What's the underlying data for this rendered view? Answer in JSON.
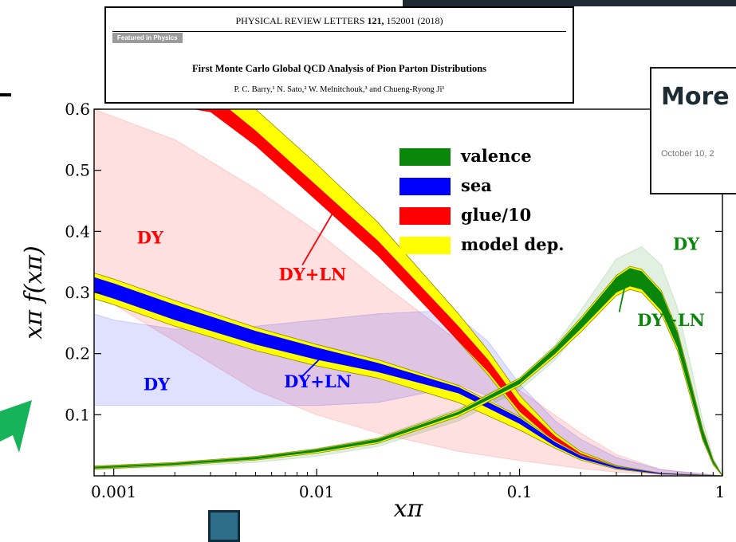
{
  "header": {
    "journal": "PHYSICAL REVIEW LETTERS ",
    "volume": "121,",
    "citation": " 152001 (2018)",
    "badge": "Featured in Physics",
    "title": "First Monte Carlo Global QCD Analysis of Pion Parton Distributions",
    "authors": "P. C. Barry,¹ N. Sato,² W. Melnitchouk,³ and Chueng-Ryong Ji¹"
  },
  "card": {
    "title": "More",
    "date": "October 10, 2"
  },
  "chart_data": {
    "type": "area",
    "xscale": "log",
    "xlim": [
      0.0008,
      1
    ],
    "ylim": [
      0,
      0.6
    ],
    "xlabel": "xπ",
    "ylabel": "xπ f(xπ)",
    "xticks": [
      {
        "value": 0.001,
        "label": "0.001"
      },
      {
        "value": 0.01,
        "label": "0.01"
      },
      {
        "value": 0.1,
        "label": "0.1"
      },
      {
        "value": 1,
        "label": "1"
      }
    ],
    "yticks": [
      {
        "value": 0.1,
        "label": "0.1"
      },
      {
        "value": 0.2,
        "label": "0.2"
      },
      {
        "value": 0.3,
        "label": "0.3"
      },
      {
        "value": 0.4,
        "label": "0.4"
      },
      {
        "value": 0.5,
        "label": "0.5"
      },
      {
        "value": 0.6,
        "label": "0.6"
      }
    ],
    "legend": {
      "placement": "top-right",
      "entries": [
        {
          "label": "valence",
          "color": "#0a870a"
        },
        {
          "label": "sea",
          "color": "#0000ff"
        },
        {
          "label": "glue/10",
          "color": "#ff0000"
        },
        {
          "label": "model dep.",
          "color": "#ffff00"
        }
      ]
    },
    "series": [
      {
        "name": "DY",
        "kind": "valence",
        "fit": "DY",
        "x": [
          0.0008,
          0.002,
          0.005,
          0.01,
          0.02,
          0.05,
          0.1,
          0.15,
          0.2,
          0.3,
          0.4,
          0.5,
          0.6,
          0.7,
          0.8,
          0.9,
          1.0
        ],
        "lower": [
          0.01,
          0.015,
          0.022,
          0.032,
          0.048,
          0.09,
          0.14,
          0.19,
          0.24,
          0.31,
          0.32,
          0.29,
          0.22,
          0.14,
          0.07,
          0.02,
          0.0
        ],
        "upper": [
          0.016,
          0.022,
          0.032,
          0.045,
          0.063,
          0.11,
          0.16,
          0.215,
          0.27,
          0.355,
          0.375,
          0.345,
          0.275,
          0.18,
          0.09,
          0.03,
          0.0
        ]
      },
      {
        "name": "DY",
        "kind": "sea",
        "fit": "DY",
        "x": [
          0.0008,
          0.001,
          0.002,
          0.005,
          0.01,
          0.02,
          0.04,
          0.05,
          0.07,
          0.1,
          0.15,
          0.2,
          0.3,
          0.5,
          1.0
        ],
        "lower": [
          0.115,
          0.115,
          0.115,
          0.115,
          0.115,
          0.12,
          0.14,
          0.15,
          0.13,
          0.09,
          0.055,
          0.035,
          0.015,
          0.005,
          0.0
        ],
        "upper": [
          0.265,
          0.255,
          0.24,
          0.245,
          0.255,
          0.265,
          0.27,
          0.26,
          0.22,
          0.15,
          0.09,
          0.06,
          0.03,
          0.01,
          0.0
        ]
      },
      {
        "name": "DY",
        "kind": "glue/10",
        "fit": "DY",
        "x": [
          0.0008,
          0.002,
          0.005,
          0.01,
          0.02,
          0.05,
          0.1,
          0.2,
          0.3,
          0.5,
          1.0
        ],
        "lower": [
          0.3,
          0.22,
          0.14,
          0.1,
          0.07,
          0.04,
          0.025,
          0.012,
          0.006,
          0.002,
          0.0
        ],
        "upper": [
          0.6,
          0.55,
          0.47,
          0.4,
          0.32,
          0.22,
          0.14,
          0.07,
          0.035,
          0.01,
          0.0
        ]
      },
      {
        "name": "DY+LN",
        "kind": "valence",
        "fit": "DY+LN",
        "x": [
          0.0008,
          0.002,
          0.005,
          0.01,
          0.02,
          0.05,
          0.1,
          0.15,
          0.2,
          0.3,
          0.35,
          0.4,
          0.5,
          0.6,
          0.7,
          0.8,
          0.9,
          1.0
        ],
        "lower": [
          0.012,
          0.018,
          0.027,
          0.039,
          0.055,
          0.1,
          0.15,
          0.2,
          0.24,
          0.3,
          0.31,
          0.305,
          0.27,
          0.21,
          0.13,
          0.06,
          0.02,
          0.0
        ],
        "upper": [
          0.015,
          0.021,
          0.031,
          0.043,
          0.06,
          0.105,
          0.158,
          0.21,
          0.255,
          0.325,
          0.34,
          0.335,
          0.3,
          0.235,
          0.15,
          0.075,
          0.025,
          0.0
        ],
        "model_dep_lower": [
          0.011,
          0.017,
          0.026,
          0.037,
          0.053,
          0.097,
          0.147,
          0.196,
          0.235,
          0.295,
          0.305,
          0.3,
          0.265,
          0.205,
          0.125,
          0.058,
          0.018,
          0.0
        ],
        "model_dep_upper": [
          0.016,
          0.022,
          0.032,
          0.044,
          0.061,
          0.107,
          0.16,
          0.212,
          0.258,
          0.328,
          0.343,
          0.338,
          0.303,
          0.238,
          0.153,
          0.077,
          0.026,
          0.0
        ]
      },
      {
        "name": "DY+LN",
        "kind": "sea",
        "fit": "DY+LN",
        "x": [
          0.0008,
          0.001,
          0.002,
          0.005,
          0.01,
          0.02,
          0.05,
          0.1,
          0.15,
          0.2,
          0.3,
          0.5,
          1.0
        ],
        "lower": [
          0.3,
          0.29,
          0.255,
          0.215,
          0.19,
          0.17,
          0.135,
          0.085,
          0.048,
          0.028,
          0.012,
          0.003,
          0.0
        ],
        "upper": [
          0.325,
          0.315,
          0.28,
          0.237,
          0.21,
          0.185,
          0.145,
          0.095,
          0.055,
          0.033,
          0.015,
          0.004,
          0.0
        ],
        "model_dep_lower": [
          0.29,
          0.28,
          0.245,
          0.205,
          0.18,
          0.16,
          0.12,
          0.075,
          0.045,
          0.026,
          0.011,
          0.003,
          0.0
        ],
        "model_dep_upper": [
          0.332,
          0.322,
          0.287,
          0.243,
          0.215,
          0.19,
          0.148,
          0.097,
          0.057,
          0.034,
          0.016,
          0.004,
          0.0
        ]
      },
      {
        "name": "DY+LN",
        "kind": "glue/10",
        "fit": "DY+LN",
        "x": [
          0.002,
          0.003,
          0.005,
          0.01,
          0.02,
          0.05,
          0.07,
          0.1,
          0.15,
          0.2,
          0.3,
          0.5,
          1.0
        ],
        "lower": [
          0.605,
          0.595,
          0.54,
          0.45,
          0.36,
          0.22,
          0.17,
          0.105,
          0.055,
          0.03,
          0.012,
          0.003,
          0.0
        ],
        "upper": [
          0.64,
          0.625,
          0.565,
          0.475,
          0.385,
          0.245,
          0.19,
          0.12,
          0.065,
          0.037,
          0.016,
          0.004,
          0.0
        ],
        "model_dep_lower": [
          0.61,
          0.6,
          0.545,
          0.455,
          0.365,
          0.22,
          0.165,
          0.1,
          0.052,
          0.028,
          0.011,
          0.003,
          0.0
        ],
        "model_dep_upper": [
          0.665,
          0.655,
          0.6,
          0.51,
          0.415,
          0.265,
          0.205,
          0.132,
          0.07,
          0.04,
          0.017,
          0.004,
          0.0
        ]
      }
    ],
    "annotations": [
      {
        "text": "DY",
        "color": "#ff0000",
        "x": 0.0013,
        "y": 0.38
      },
      {
        "text": "DY+LN",
        "color": "#ff0000",
        "x": 0.0065,
        "y": 0.32
      },
      {
        "text": "DY",
        "color": "#0000ff",
        "x": 0.0014,
        "y": 0.14
      },
      {
        "text": "DY+LN",
        "color": "#0000ff",
        "x": 0.0069,
        "y": 0.145
      },
      {
        "text": "DY",
        "color": "#0a870a",
        "x": 0.57,
        "y": 0.37
      },
      {
        "text": "DY+LN",
        "color": "#0a870a",
        "x": 0.38,
        "y": 0.245
      }
    ],
    "pointers": [
      {
        "color": "#ff0000",
        "from": [
          0.0085,
          0.345
        ],
        "to": [
          0.012,
          0.43
        ]
      },
      {
        "color": "#0000ff",
        "from": [
          0.0085,
          0.163
        ],
        "to": [
          0.011,
          0.2
        ]
      },
      {
        "color": "#0a870a",
        "from": [
          0.31,
          0.268
        ],
        "to": [
          0.34,
          0.33
        ]
      }
    ]
  }
}
